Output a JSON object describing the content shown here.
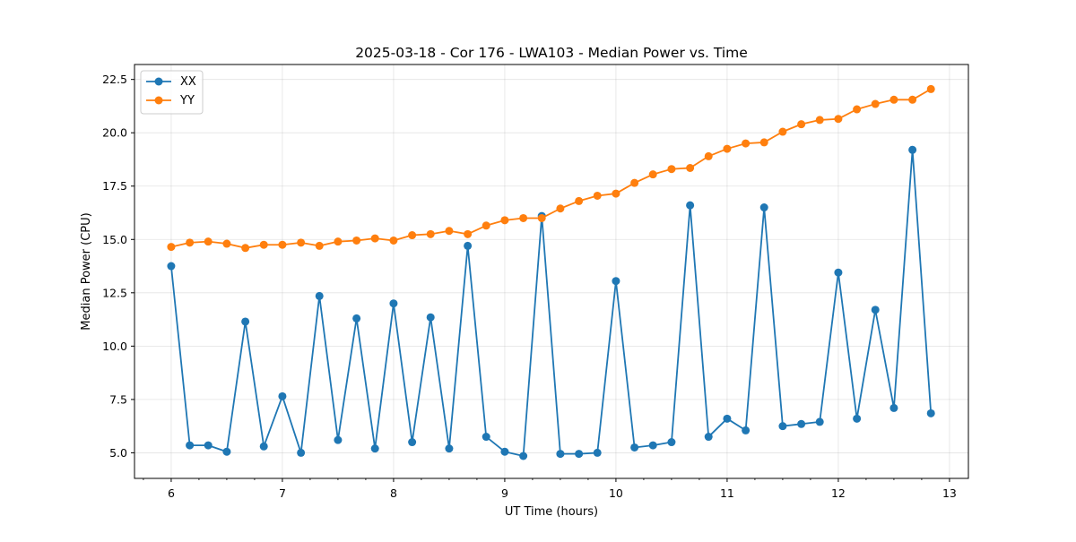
{
  "chart_data": {
    "type": "line",
    "title": "2025-03-18 - Cor 176 - LWA103 - Median Power vs. Time",
    "xlabel": "UT Time (hours)",
    "ylabel": "Median Power (CPU)",
    "xlim": [
      5.67,
      13.17
    ],
    "ylim": [
      3.8,
      23.2
    ],
    "xticks": [
      6,
      7,
      8,
      9,
      10,
      11,
      12,
      13
    ],
    "xtick_labels": [
      "6",
      "7",
      "8",
      "9",
      "10",
      "11",
      "12",
      "13"
    ],
    "yticks": [
      5.0,
      7.5,
      10.0,
      12.5,
      15.0,
      17.5,
      20.0,
      22.5
    ],
    "ytick_labels": [
      "5.0",
      "7.5",
      "10.0",
      "12.5",
      "15.0",
      "17.5",
      "20.0",
      "22.5"
    ],
    "grid": true,
    "legend_position": "upper-left",
    "x": [
      6.0,
      6.167,
      6.333,
      6.5,
      6.667,
      6.833,
      7.0,
      7.167,
      7.333,
      7.5,
      7.667,
      7.833,
      8.0,
      8.167,
      8.333,
      8.5,
      8.667,
      8.833,
      9.0,
      9.167,
      9.333,
      9.5,
      9.667,
      9.833,
      10.0,
      10.167,
      10.333,
      10.5,
      10.667,
      10.833,
      11.0,
      11.167,
      11.333,
      11.5,
      11.667,
      11.833,
      12.0,
      12.167,
      12.333,
      12.5,
      12.667,
      12.833
    ],
    "series": [
      {
        "name": "XX",
        "color": "#1f77b4",
        "values": [
          13.75,
          5.35,
          5.35,
          5.05,
          11.15,
          5.3,
          7.65,
          5.0,
          12.35,
          5.6,
          11.3,
          5.2,
          12.0,
          5.5,
          11.35,
          5.2,
          14.7,
          5.75,
          5.05,
          4.85,
          16.1,
          4.95,
          4.95,
          5.0,
          13.05,
          5.25,
          5.35,
          5.5,
          16.6,
          5.75,
          6.6,
          6.05,
          16.5,
          6.25,
          6.35,
          6.45,
          13.45,
          6.6,
          11.7,
          7.1,
          19.2,
          6.85
        ]
      },
      {
        "name": "YY",
        "color": "#ff7f0e",
        "values": [
          14.65,
          14.85,
          14.9,
          14.8,
          14.6,
          14.75,
          14.75,
          14.85,
          14.7,
          14.9,
          14.95,
          15.05,
          14.95,
          15.2,
          15.25,
          15.4,
          15.25,
          15.65,
          15.9,
          16.0,
          16.0,
          16.45,
          16.8,
          17.05,
          17.15,
          17.65,
          18.05,
          18.3,
          18.35,
          18.9,
          19.25,
          19.5,
          19.55,
          20.05,
          20.4,
          20.6,
          20.65,
          21.1,
          21.35,
          21.55,
          21.55,
          22.05
        ]
      }
    ]
  }
}
